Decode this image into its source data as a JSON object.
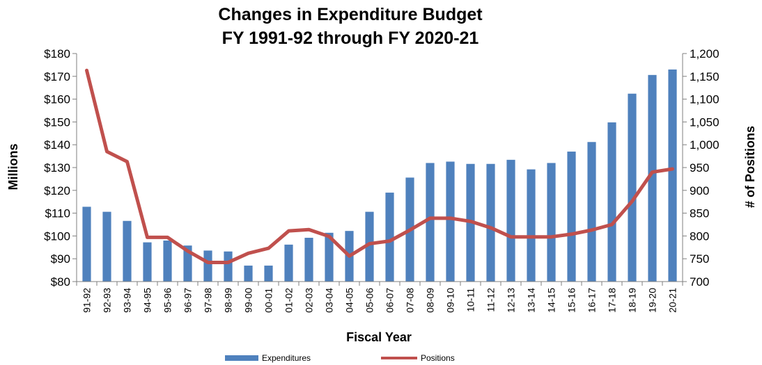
{
  "chart_data": {
    "type": "bar",
    "title_lines": [
      "Changes in Expenditure Budget",
      "FY 1991-92 through FY 2020-21"
    ],
    "xlabel": "Fiscal Year",
    "ylabel": "Millions",
    "y2label": "# of Positions",
    "ylim": [
      80,
      180
    ],
    "y2lim": [
      700,
      1200
    ],
    "yticks": [
      "$80",
      "$90",
      "$100",
      "$110",
      "$120",
      "$130",
      "$140",
      "$150",
      "$160",
      "$170",
      "$180"
    ],
    "y2ticks": [
      "700",
      "750",
      "800",
      "850",
      "900",
      "950",
      "1,000",
      "1,050",
      "1,100",
      "1,150",
      "1,200"
    ],
    "categories": [
      "91-92",
      "92-93",
      "93-94",
      "94-95",
      "95-96",
      "96-97",
      "97-98",
      "98-99",
      "99-00",
      "00-01",
      "01-02",
      "02-03",
      "03-04",
      "04-05",
      "05-06",
      "06-07",
      "07-08",
      "08-09",
      "09-10",
      "10-11",
      "11-12",
      "12-13",
      "13-14",
      "14-15",
      "15-16",
      "16-17",
      "17-18",
      "18-19",
      "19-20",
      "20-21"
    ],
    "series": [
      {
        "name": "Expenditures",
        "kind": "bar",
        "axis": "left",
        "color": "#4F81BD",
        "values": [
          112.8,
          110.6,
          106.6,
          97.2,
          98.0,
          95.8,
          93.6,
          93.2,
          87.0,
          87.0,
          96.2,
          99.2,
          101.4,
          102.2,
          110.6,
          119.0,
          125.6,
          132.0,
          132.6,
          131.6,
          131.6,
          133.4,
          129.2,
          132.0,
          137.0,
          141.2,
          149.8,
          162.4,
          170.6,
          173.0
        ]
      },
      {
        "name": "Positions",
        "kind": "line",
        "axis": "right",
        "color": "#C0504D",
        "values": [
          1163,
          985,
          963,
          797,
          797,
          767,
          742,
          742,
          762,
          773,
          811,
          814,
          799,
          756,
          783,
          789,
          813,
          839,
          839,
          832,
          818,
          798,
          798,
          798,
          804,
          813,
          825,
          876,
          940,
          947
        ]
      }
    ],
    "grid": false,
    "legend": "bottom"
  }
}
